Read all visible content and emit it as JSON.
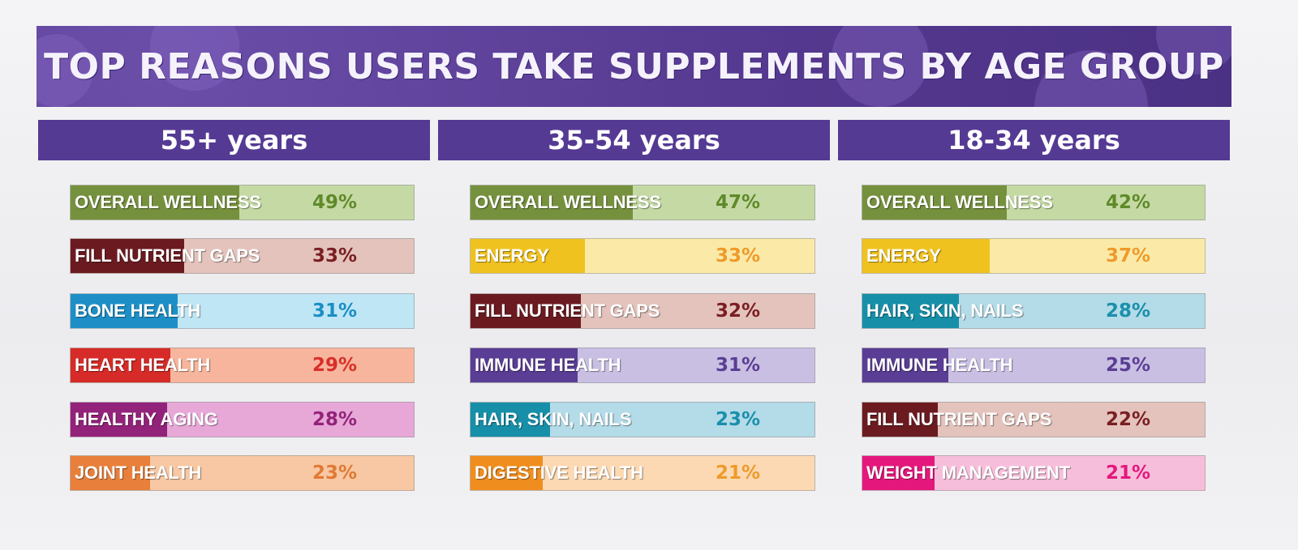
{
  "chart_data": {
    "type": "bar",
    "title": "TOP REASONS USERS TAKE SUPPLEMENTS BY AGE GROUP",
    "groups": [
      {
        "name": "55+ years",
        "items": [
          {
            "label": "OVERALL WELLNESS",
            "value": 49,
            "display": "49%",
            "color": "#76913d",
            "light": "#c5d9a4",
            "text": "#5f8a2a"
          },
          {
            "label": "FILL NUTRIENT GAPS",
            "value": 33,
            "display": "33%",
            "color": "#6b1b20",
            "light": "#e3c3bc",
            "text": "#7a1e22"
          },
          {
            "label": "BONE HEALTH",
            "value": 31,
            "display": "31%",
            "color": "#1e8fc6",
            "light": "#bfe6f5",
            "text": "#1a8ec4"
          },
          {
            "label": "HEART HEALTH",
            "value": 29,
            "display": "29%",
            "color": "#d62b28",
            "light": "#f6b59c",
            "text": "#d8302a"
          },
          {
            "label": "HEALTHY AGING",
            "value": 28,
            "display": "28%",
            "color": "#93237a",
            "light": "#e7a8d8",
            "text": "#93237a"
          },
          {
            "label": "JOINT HEALTH",
            "value": 23,
            "display": "23%",
            "color": "#e8803c",
            "light": "#f7c8a3",
            "text": "#e07a35"
          }
        ]
      },
      {
        "name": "35-54 years",
        "items": [
          {
            "label": "OVERALL WELLNESS",
            "value": 47,
            "display": "47%",
            "color": "#76913d",
            "light": "#c5d9a4",
            "text": "#5f8a2a"
          },
          {
            "label": "ENERGY",
            "value": 33,
            "display": "33%",
            "color": "#f0c21f",
            "light": "#fbeaa7",
            "text": "#ee9a2a"
          },
          {
            "label": "FILL NUTRIENT GAPS",
            "value": 32,
            "display": "32%",
            "color": "#6b1b20",
            "light": "#e3c3bc",
            "text": "#7a1e22"
          },
          {
            "label": "IMMUNE HEALTH",
            "value": 31,
            "display": "31%",
            "color": "#5a3d94",
            "light": "#c9bfe3",
            "text": "#5a3d94"
          },
          {
            "label": "HAIR, SKIN, NAILS",
            "value": 23,
            "display": "23%",
            "color": "#178fa8",
            "light": "#b3dbe8",
            "text": "#1a8fab"
          },
          {
            "label": "DIGESTIVE HEALTH",
            "value": 21,
            "display": "21%",
            "color": "#ef8e1f",
            "light": "#fcd9b3",
            "text": "#ee9a2a"
          }
        ]
      },
      {
        "name": "18-34 years",
        "items": [
          {
            "label": "OVERALL WELLNESS",
            "value": 42,
            "display": "42%",
            "color": "#76913d",
            "light": "#c5d9a4",
            "text": "#5f8a2a"
          },
          {
            "label": "ENERGY",
            "value": 37,
            "display": "37%",
            "color": "#f0c21f",
            "light": "#fbeaa7",
            "text": "#ee9a2a"
          },
          {
            "label": "HAIR, SKIN, NAILS",
            "value": 28,
            "display": "28%",
            "color": "#178fa8",
            "light": "#b3dbe8",
            "text": "#1a8fab"
          },
          {
            "label": "IMMUNE HEALTH",
            "value": 25,
            "display": "25%",
            "color": "#5a3d94",
            "light": "#c9bfe3",
            "text": "#5a3d94"
          },
          {
            "label": "FILL NUTRIENT GAPS",
            "value": 22,
            "display": "22%",
            "color": "#6b1b20",
            "light": "#e3c3bc",
            "text": "#7a1e22"
          },
          {
            "label": "WEIGHT MANAGEMENT",
            "value": 21,
            "display": "21%",
            "color": "#e4187c",
            "light": "#f7bedb",
            "text": "#e4187c"
          }
        ]
      }
    ],
    "xlim": [
      0,
      100
    ]
  }
}
